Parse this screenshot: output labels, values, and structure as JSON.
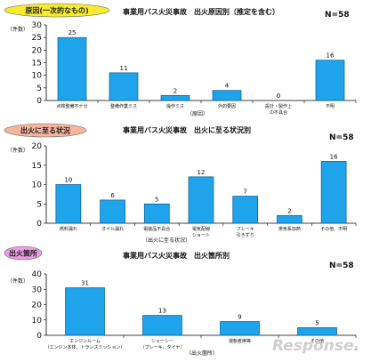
{
  "colors": {
    "bar": "#1fa3ea",
    "bar_stroke": "#0a5f93",
    "badge1": "#f7ec2c",
    "badge2": "#f7b59e",
    "badge3": "#ee9be3"
  },
  "chart_data": [
    {
      "type": "bar",
      "badge": "原因(一次的なもの)",
      "title": "事業用バス火災事故　出火原因別（推定を含む）",
      "n_label": "N=58",
      "unit": "（件数）",
      "xlabel": "（原因）",
      "ylim": [
        0,
        30
      ],
      "yticks": [
        0,
        5,
        10,
        15,
        20,
        25,
        30
      ],
      "categories": [
        [
          "点検整備不十分"
        ],
        [
          "整備作業ミス"
        ],
        [
          "操作ミス"
        ],
        [
          "外的要因"
        ],
        [
          "設計・製作上",
          "の不具合"
        ],
        [
          "不明"
        ]
      ],
      "values": [
        25,
        11,
        2,
        4,
        0,
        16
      ],
      "value_labels": [
        "25",
        "11",
        "2",
        "4",
        "0",
        "16"
      ],
      "tick_labels": [
        "0",
        "5",
        "10",
        "15",
        "20",
        "25",
        "30"
      ]
    },
    {
      "type": "bar",
      "badge": "出火に至る状況",
      "title": "事業用バス火災事故　出火に至る状況別",
      "n_label": "N=58",
      "unit": "（件数）",
      "xlabel": "（出火に至る状況）",
      "ylim": [
        0,
        20
      ],
      "yticks": [
        0,
        5,
        10,
        15,
        20
      ],
      "categories": [
        [
          "燃料漏れ"
        ],
        [
          "オイル漏れ"
        ],
        [
          "電装品不具合"
        ],
        [
          "電気配線",
          "ショート"
        ],
        [
          "ブレーキ",
          "引きずり"
        ],
        [
          "排気系加熱"
        ],
        [
          "その他、不明"
        ]
      ],
      "values": [
        10,
        6,
        5,
        12,
        7,
        2,
        16
      ],
      "value_labels": [
        "10",
        "6",
        "5",
        "12",
        "7",
        "2",
        "16"
      ],
      "tick_labels": [
        "0",
        "5",
        "10",
        "15",
        "20"
      ]
    },
    {
      "type": "bar",
      "badge": "出火箇所",
      "title": "事業用バス火災事故　出火箇所別",
      "n_label": "N=58",
      "unit": "（件数）",
      "xlabel": "（出火箇所）",
      "ylim": [
        0,
        40
      ],
      "yticks": [
        0,
        10,
        20,
        30,
        40
      ],
      "categories": [
        [
          "エンジンルーム",
          "（エンジン本体、トランスミッション）"
        ],
        [
          "シャーシー",
          "（ブレーキ、タイヤ）"
        ],
        [
          "運転者席等"
        ],
        [
          "その他"
        ]
      ],
      "values": [
        31,
        13,
        9,
        5
      ],
      "value_labels": [
        "31",
        "13",
        "9",
        "5"
      ],
      "tick_labels": [
        "0",
        "10",
        "20",
        "30",
        "40"
      ]
    }
  ],
  "watermark": {
    "brand": "Response.",
    "tag": "2"
  }
}
